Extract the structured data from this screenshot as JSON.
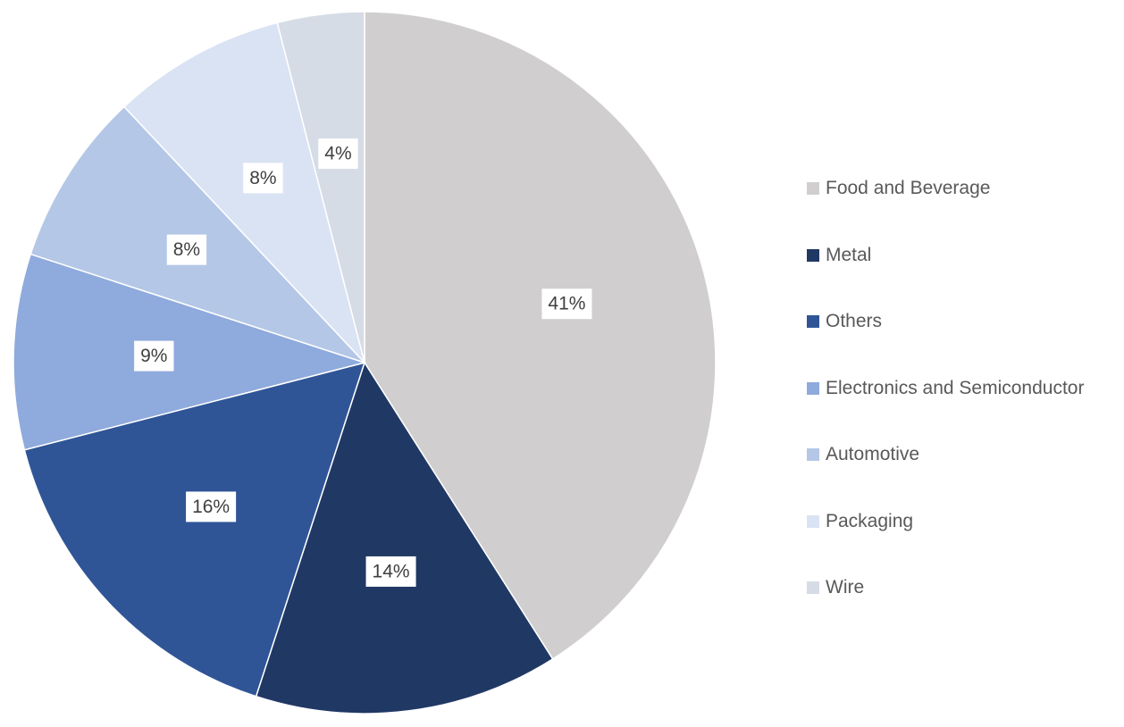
{
  "chart_data": {
    "type": "pie",
    "legend_position": "right",
    "slices": [
      {
        "label": "Food and Beverage",
        "value": 41,
        "display": "41%",
        "color": "#D0CECE"
      },
      {
        "label": "Metal",
        "value": 14,
        "display": "14%",
        "color": "#203864"
      },
      {
        "label": "Others",
        "value": 16,
        "display": "16%",
        "color": "#2F5597"
      },
      {
        "label": "Electronics and Semiconductor",
        "value": 9,
        "display": "9%",
        "color": "#8FAADC"
      },
      {
        "label": "Automotive",
        "value": 8,
        "display": "8%",
        "color": "#B4C7E7"
      },
      {
        "label": "Packaging",
        "value": 8,
        "display": "8%",
        "color": "#DAE3F3"
      },
      {
        "label": "Wire",
        "value": 4,
        "display": "4%",
        "color": "#D6DCE5"
      }
    ]
  }
}
